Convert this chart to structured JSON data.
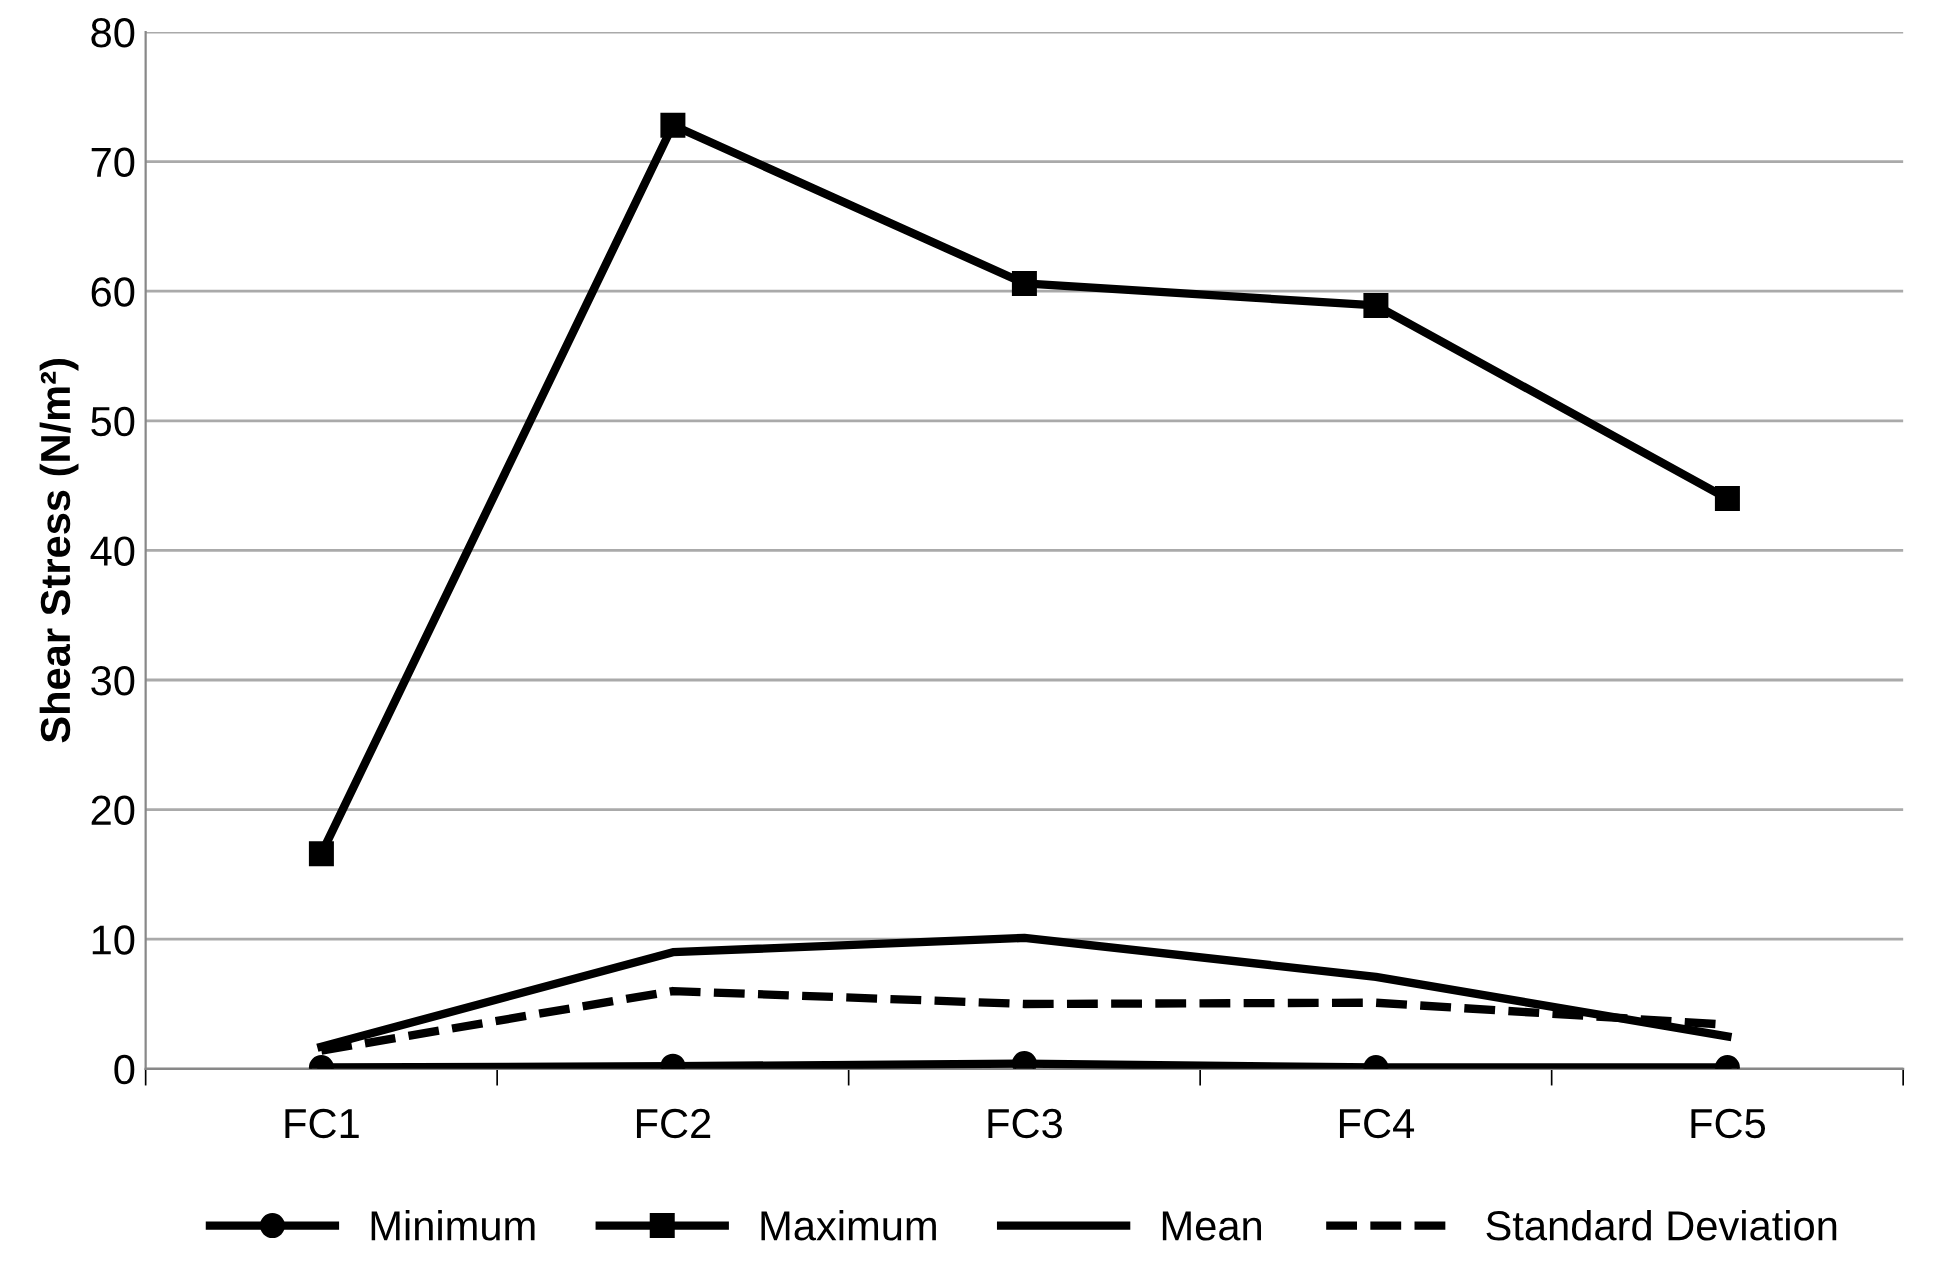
{
  "chart_data": {
    "type": "line",
    "ylabel": "Shear Stress (N/m²)",
    "categories": [
      "FC1",
      "FC2",
      "FC3",
      "FC4",
      "FC5"
    ],
    "series": [
      {
        "name": "Minimum",
        "color": "#000000",
        "marker": "circle",
        "line_style": "solid",
        "values": [
          0.1,
          0.2,
          0.4,
          0.1,
          0.1
        ]
      },
      {
        "name": "Maximum",
        "color": "#000000",
        "marker": "square",
        "line_style": "solid",
        "values": [
          16.6,
          72.8,
          60.6,
          58.9,
          44.0
        ]
      },
      {
        "name": "Mean",
        "color": "#000000",
        "marker": "none",
        "line_style": "solid",
        "values": [
          1.7,
          9.0,
          10.1,
          7.1,
          2.5
        ]
      },
      {
        "name": "Standard Deviation",
        "color": "#000000",
        "marker": "none",
        "line_style": "dashed",
        "values": [
          1.4,
          6.0,
          5.0,
          5.1,
          3.4
        ]
      }
    ],
    "ylim": [
      0,
      80
    ],
    "yticks": [
      0,
      10,
      20,
      30,
      40,
      50,
      60,
      70,
      80
    ],
    "grid": "y",
    "legend": "bottom"
  }
}
